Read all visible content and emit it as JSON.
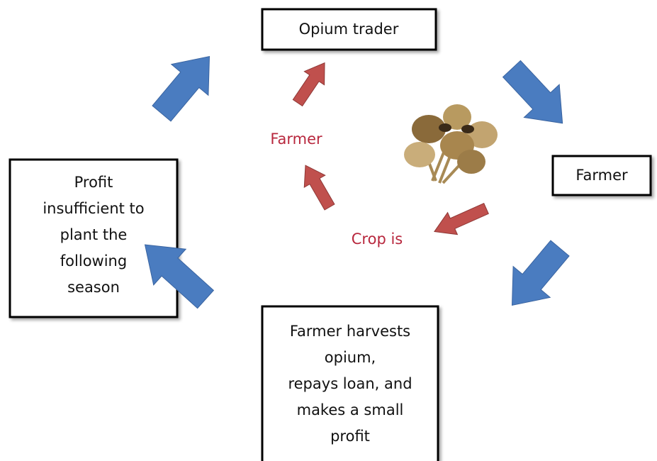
{
  "nodes": [
    {
      "lines": [
        "Opium trader"
      ]
    },
    {
      "lines": [
        "Farmer"
      ]
    },
    {
      "lines": [
        "Farmer harvests",
        "opium,",
        "repays loan, and",
        "makes a small",
        "profit"
      ]
    },
    {
      "lines": [
        "Profit",
        "insufficient to",
        "plant the",
        "following",
        "season"
      ]
    }
  ],
  "inner_labels": [
    "Farmer",
    "Crop is"
  ]
}
